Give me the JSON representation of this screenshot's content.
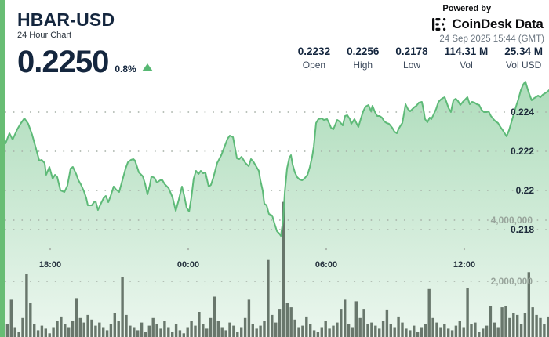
{
  "header": {
    "symbol": "HBAR-USD",
    "subtitle": "24 Hour Chart",
    "price": "0.2250",
    "change_percent": "0.8%",
    "change_direction": "up",
    "stats": [
      {
        "value": "0.2232",
        "label": "Open"
      },
      {
        "value": "0.2256",
        "label": "High"
      },
      {
        "value": "0.2178",
        "label": "Low"
      },
      {
        "value": "114.31 M",
        "label": "Vol"
      },
      {
        "value": "25.34 M",
        "label": "Vol USD"
      }
    ],
    "powered_by": "Powered by",
    "brand": "CoinDesk Data",
    "timestamp": "24 Sep 2025 15:44 (GMT)"
  },
  "colors": {
    "navy": "#14263e",
    "subtitle": "#29323c",
    "stat_label": "#3d4a5c",
    "timestamp": "#6b7681",
    "brand_black": "#0b0c0e",
    "accent_green": "#68bd74",
    "line_green": "#5eba78",
    "change_green": "#57b873",
    "volume_bar": "#5d6b61",
    "grid_dot": "#a9b3aa",
    "axis_label": "#1e2b3a",
    "volume_label": "#98a49b",
    "time_label": "#27333f"
  },
  "chart_data": {
    "type": "area",
    "title": "HBAR-USD 24 Hour Chart",
    "legend": "none",
    "grid": "dotted-horizontal",
    "x_axis": {
      "unit": "hours_from_start",
      "range": [
        0,
        23.63
      ],
      "ticks": [
        {
          "label": "18:00",
          "t": 1.943
        },
        {
          "label": "00:00",
          "t": 7.943
        },
        {
          "label": "06:00",
          "t": 13.943
        },
        {
          "label": "12:00",
          "t": 19.943
        }
      ]
    },
    "y_axis_price": {
      "values": [
        0.218,
        0.22,
        0.222,
        0.224
      ],
      "labels": [
        "0.218",
        "0.22",
        "0.222",
        "0.224"
      ],
      "step": 0.002,
      "visible_range": [
        0.2174,
        0.2256
      ]
    },
    "y_axis_volume": {
      "values": [
        2000000,
        4000000
      ],
      "labels": [
        "2,000,000",
        "4,000,000"
      ],
      "range": [
        0,
        4600000
      ]
    },
    "price_series": [
      [
        0,
        0.2224
      ],
      [
        0.17,
        0.22292
      ],
      [
        0.31,
        0.2226
      ],
      [
        0.51,
        0.22312
      ],
      [
        0.65,
        0.2234
      ],
      [
        0.82,
        0.22368
      ],
      [
        0.99,
        0.2234
      ],
      [
        1.16,
        0.22284
      ],
      [
        1.33,
        0.22212
      ],
      [
        1.47,
        0.22152
      ],
      [
        1.57,
        0.22156
      ],
      [
        1.7,
        0.2214
      ],
      [
        1.77,
        0.2208
      ],
      [
        1.91,
        0.2212
      ],
      [
        2.05,
        0.2206
      ],
      [
        2.15,
        0.2208
      ],
      [
        2.25,
        0.22068
      ],
      [
        2.39,
        0.22
      ],
      [
        2.56,
        0.21992
      ],
      [
        2.69,
        0.22024
      ],
      [
        2.83,
        0.22112
      ],
      [
        2.93,
        0.2212
      ],
      [
        3.07,
        0.22084
      ],
      [
        3.17,
        0.22052
      ],
      [
        3.27,
        0.22032
      ],
      [
        3.41,
        0.21996
      ],
      [
        3.51,
        0.2196
      ],
      [
        3.58,
        0.21924
      ],
      [
        3.75,
        0.21924
      ],
      [
        3.85,
        0.2194
      ],
      [
        3.92,
        0.21944
      ],
      [
        4.02,
        0.219
      ],
      [
        4.16,
        0.21936
      ],
      [
        4.26,
        0.2196
      ],
      [
        4.36,
        0.21972
      ],
      [
        4.47,
        0.2194
      ],
      [
        4.57,
        0.21972
      ],
      [
        4.7,
        0.2202
      ],
      [
        4.81,
        0.22004
      ],
      [
        4.94,
        0.21992
      ],
      [
        5.08,
        0.22052
      ],
      [
        5.22,
        0.22112
      ],
      [
        5.32,
        0.22144
      ],
      [
        5.45,
        0.22156
      ],
      [
        5.56,
        0.2216
      ],
      [
        5.63,
        0.22152
      ],
      [
        5.8,
        0.22092
      ],
      [
        5.97,
        0.22072
      ],
      [
        6.07,
        0.22032
      ],
      [
        6.17,
        0.2198
      ],
      [
        6.27,
        0.22024
      ],
      [
        6.34,
        0.22072
      ],
      [
        6.48,
        0.22064
      ],
      [
        6.58,
        0.2204
      ],
      [
        6.72,
        0.22052
      ],
      [
        6.82,
        0.22052
      ],
      [
        6.92,
        0.22032
      ],
      [
        7.09,
        0.22012
      ],
      [
        7.26,
        0.21964
      ],
      [
        7.4,
        0.21896
      ],
      [
        7.53,
        0.21952
      ],
      [
        7.67,
        0.2202
      ],
      [
        7.77,
        0.21972
      ],
      [
        7.87,
        0.21912
      ],
      [
        7.98,
        0.21892
      ],
      [
        8.08,
        0.21964
      ],
      [
        8.18,
        0.2206
      ],
      [
        8.28,
        0.221
      ],
      [
        8.39,
        0.22084
      ],
      [
        8.49,
        0.221
      ],
      [
        8.59,
        0.22088
      ],
      [
        8.69,
        0.22092
      ],
      [
        8.83,
        0.2202
      ],
      [
        8.93,
        0.22028
      ],
      [
        9.03,
        0.22064
      ],
      [
        9.2,
        0.2214
      ],
      [
        9.38,
        0.2218
      ],
      [
        9.55,
        0.22232
      ],
      [
        9.65,
        0.22264
      ],
      [
        9.75,
        0.2228
      ],
      [
        9.89,
        0.22272
      ],
      [
        10.06,
        0.22164
      ],
      [
        10.16,
        0.2216
      ],
      [
        10.26,
        0.22172
      ],
      [
        10.43,
        0.2214
      ],
      [
        10.57,
        0.22124
      ],
      [
        10.67,
        0.2216
      ],
      [
        10.77,
        0.22148
      ],
      [
        10.91,
        0.2212
      ],
      [
        11.01,
        0.221
      ],
      [
        11.08,
        0.22052
      ],
      [
        11.18,
        0.22
      ],
      [
        11.25,
        0.21932
      ],
      [
        11.35,
        0.21924
      ],
      [
        11.45,
        0.2188
      ],
      [
        11.59,
        0.21872
      ],
      [
        11.69,
        0.21832
      ],
      [
        11.8,
        0.21792
      ],
      [
        11.9,
        0.2178
      ],
      [
        11.97,
        0.21768
      ],
      [
        12.07,
        0.21852
      ],
      [
        12.14,
        0.21992
      ],
      [
        12.24,
        0.22112
      ],
      [
        12.34,
        0.22168
      ],
      [
        12.41,
        0.2218
      ],
      [
        12.48,
        0.22132
      ],
      [
        12.58,
        0.22092
      ],
      [
        12.68,
        0.22068
      ],
      [
        12.78,
        0.22056
      ],
      [
        12.89,
        0.22052
      ],
      [
        12.99,
        0.2206
      ],
      [
        13.13,
        0.2208
      ],
      [
        13.23,
        0.2212
      ],
      [
        13.33,
        0.22172
      ],
      [
        13.4,
        0.22224
      ],
      [
        13.5,
        0.22344
      ],
      [
        13.6,
        0.22364
      ],
      [
        13.74,
        0.22368
      ],
      [
        13.84,
        0.2236
      ],
      [
        13.98,
        0.22364
      ],
      [
        14.08,
        0.2234
      ],
      [
        14.15,
        0.2232
      ],
      [
        14.25,
        0.22312
      ],
      [
        14.35,
        0.2234
      ],
      [
        14.42,
        0.2236
      ],
      [
        14.52,
        0.22352
      ],
      [
        14.66,
        0.22332
      ],
      [
        14.76,
        0.2238
      ],
      [
        14.86,
        0.22384
      ],
      [
        14.97,
        0.22364
      ],
      [
        15.03,
        0.2234
      ],
      [
        15.17,
        0.22364
      ],
      [
        15.27,
        0.2234
      ],
      [
        15.34,
        0.22324
      ],
      [
        15.44,
        0.22364
      ],
      [
        15.55,
        0.22404
      ],
      [
        15.65,
        0.22428
      ],
      [
        15.78,
        0.22436
      ],
      [
        15.89,
        0.22404
      ],
      [
        15.95,
        0.22432
      ],
      [
        16.06,
        0.224
      ],
      [
        16.16,
        0.2238
      ],
      [
        16.26,
        0.2238
      ],
      [
        16.36,
        0.22372
      ],
      [
        16.47,
        0.22352
      ],
      [
        16.57,
        0.22344
      ],
      [
        16.67,
        0.2234
      ],
      [
        16.81,
        0.2232
      ],
      [
        16.91,
        0.223
      ],
      [
        17.01,
        0.22292
      ],
      [
        17.08,
        0.22312
      ],
      [
        17.18,
        0.22332
      ],
      [
        17.25,
        0.22344
      ],
      [
        17.32,
        0.22392
      ],
      [
        17.39,
        0.2244
      ],
      [
        17.49,
        0.22416
      ],
      [
        17.59,
        0.22404
      ],
      [
        17.66,
        0.22412
      ],
      [
        17.76,
        0.22424
      ],
      [
        17.86,
        0.22432
      ],
      [
        17.97,
        0.22448
      ],
      [
        18.1,
        0.22452
      ],
      [
        18.17,
        0.22412
      ],
      [
        18.24,
        0.22364
      ],
      [
        18.34,
        0.22348
      ],
      [
        18.44,
        0.22372
      ],
      [
        18.51,
        0.22364
      ],
      [
        18.61,
        0.22388
      ],
      [
        18.72,
        0.22416
      ],
      [
        18.82,
        0.22452
      ],
      [
        18.92,
        0.22464
      ],
      [
        19.02,
        0.22472
      ],
      [
        19.09,
        0.22476
      ],
      [
        19.19,
        0.22444
      ],
      [
        19.26,
        0.2242
      ],
      [
        19.36,
        0.224
      ],
      [
        19.47,
        0.2246
      ],
      [
        19.57,
        0.22468
      ],
      [
        19.67,
        0.22456
      ],
      [
        19.77,
        0.22436
      ],
      [
        19.88,
        0.22452
      ],
      [
        19.98,
        0.22464
      ],
      [
        20.08,
        0.22476
      ],
      [
        20.18,
        0.2244
      ],
      [
        20.28,
        0.22452
      ],
      [
        20.39,
        0.22448
      ],
      [
        20.49,
        0.2244
      ],
      [
        20.59,
        0.22436
      ],
      [
        20.69,
        0.22412
      ],
      [
        20.8,
        0.224
      ],
      [
        20.9,
        0.224
      ],
      [
        21.0,
        0.22404
      ],
      [
        21.1,
        0.2238
      ],
      [
        21.24,
        0.2236
      ],
      [
        21.31,
        0.22352
      ],
      [
        21.41,
        0.22344
      ],
      [
        21.51,
        0.22324
      ],
      [
        21.61,
        0.22308
      ],
      [
        21.72,
        0.22288
      ],
      [
        21.78,
        0.22276
      ],
      [
        21.89,
        0.22308
      ],
      [
        21.99,
        0.22348
      ],
      [
        22.09,
        0.22388
      ],
      [
        22.19,
        0.22428
      ],
      [
        22.3,
        0.22468
      ],
      [
        22.4,
        0.22512
      ],
      [
        22.5,
        0.2254
      ],
      [
        22.6,
        0.22556
      ],
      [
        22.7,
        0.22516
      ],
      [
        22.77,
        0.22492
      ],
      [
        22.87,
        0.2246
      ],
      [
        22.94,
        0.22468
      ],
      [
        23.05,
        0.22476
      ],
      [
        23.15,
        0.22484
      ],
      [
        23.25,
        0.22476
      ],
      [
        23.35,
        0.22488
      ],
      [
        23.45,
        0.22496
      ],
      [
        23.56,
        0.22504
      ],
      [
        23.63,
        0.22512
      ]
    ],
    "volume_series": [
      600,
      1400,
      500,
      350,
      800,
      2250,
      1300,
      600,
      400,
      550,
      450,
      300,
      500,
      700,
      850,
      600,
      500,
      700,
      1450,
      800,
      650,
      900,
      750,
      550,
      650,
      500,
      400,
      600,
      950,
      700,
      2150,
      900,
      550,
      500,
      400,
      650,
      350,
      550,
      800,
      600,
      450,
      700,
      500,
      350,
      600,
      400,
      300,
      500,
      700,
      550,
      1000,
      600,
      450,
      800,
      1500,
      700,
      500,
      400,
      650,
      550,
      350,
      500,
      800,
      1400,
      600,
      450,
      550,
      700,
      2700,
      900,
      650,
      1100,
      4600,
      1300,
      1150,
      750,
      500,
      550,
      850,
      600,
      400,
      350,
      500,
      700,
      450,
      550,
      650,
      1100,
      1400,
      600,
      500,
      1350,
      800,
      1100,
      600,
      650,
      550,
      450,
      700,
      1080,
      600,
      500,
      850,
      650,
      450,
      400,
      550,
      350,
      500,
      600,
      1750,
      800,
      650,
      500,
      600,
      450,
      400,
      550,
      700,
      500,
      1790,
      600,
      650,
      350,
      450,
      550,
      1200,
      650,
      500,
      1150,
      1200,
      800,
      950,
      900,
      600,
      950,
      2300,
      1150,
      900,
      800,
      600,
      850,
      700,
      650
    ],
    "volume_unit_multiplier": 1000
  }
}
